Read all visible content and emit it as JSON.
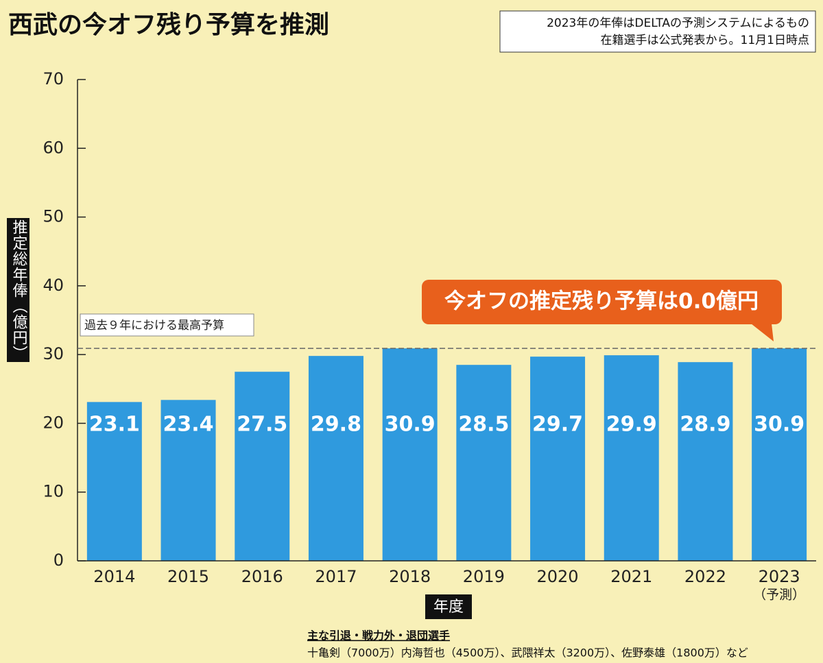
{
  "chart_data": {
    "type": "bar",
    "title": "西武の今オフ残り予算を推測",
    "notes": [
      "2023年の年俸はDELTAの予測システムによるもの",
      "在籍選手は公式発表から。11月1日時点"
    ],
    "y_label": "推定総年俸（億円）",
    "x_label": "年度",
    "categories": [
      "2014",
      "2015",
      "2016",
      "2017",
      "2018",
      "2019",
      "2020",
      "2021",
      "2022",
      "2023"
    ],
    "category_notes": [
      null,
      null,
      null,
      null,
      null,
      null,
      null,
      null,
      null,
      "（予測）"
    ],
    "values": [
      23.1,
      23.4,
      27.5,
      29.8,
      30.9,
      28.5,
      29.7,
      29.9,
      28.9,
      30.9
    ],
    "color": "#2f9ade",
    "ylim": [
      0,
      70
    ],
    "yticks": [
      0,
      10,
      20,
      30,
      40,
      50,
      60,
      70
    ],
    "grid": false,
    "reference_line": {
      "value": 30.9,
      "label": "過去９年における最高予算"
    },
    "callout": "今オフの推定残り予算は0.0億円",
    "footer": {
      "heading": "主な引退・戦力外・退団選手",
      "text": "十亀剣（7000万）内海哲也（4500万）、武隈祥太（3200万）、佐野泰雄（1800万）など"
    }
  }
}
